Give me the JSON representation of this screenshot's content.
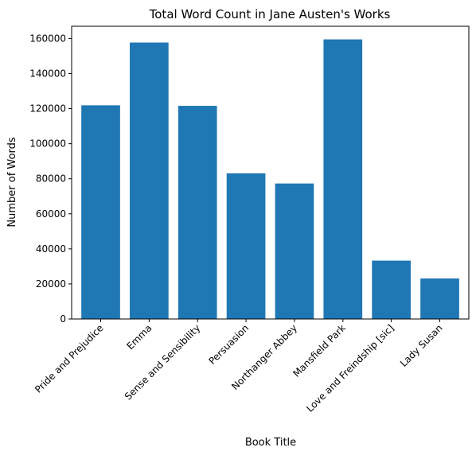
{
  "chart_data": {
    "type": "bar",
    "title": "Total Word Count in Jane Austen's Works",
    "xlabel": "Book Title",
    "ylabel": "Number of Words",
    "categories": [
      "Pride and Prejudice",
      "Emma",
      "Sense and Sensibility",
      "Persuasion",
      "Northanger Abbey",
      "Mansfield Park",
      "Love and Freindship [sic]",
      "Lady Susan"
    ],
    "values": [
      121900,
      157700,
      121600,
      83100,
      77300,
      159500,
      33300,
      23100
    ],
    "ylim": [
      0,
      167000
    ],
    "yticks": [
      0,
      20000,
      40000,
      60000,
      80000,
      100000,
      120000,
      140000,
      160000
    ],
    "ytick_labels": [
      "0",
      "20000",
      "40000",
      "60000",
      "80000",
      "100000",
      "120000",
      "140000",
      "160000"
    ],
    "grid": false,
    "bar_color": "#1f77b4"
  }
}
